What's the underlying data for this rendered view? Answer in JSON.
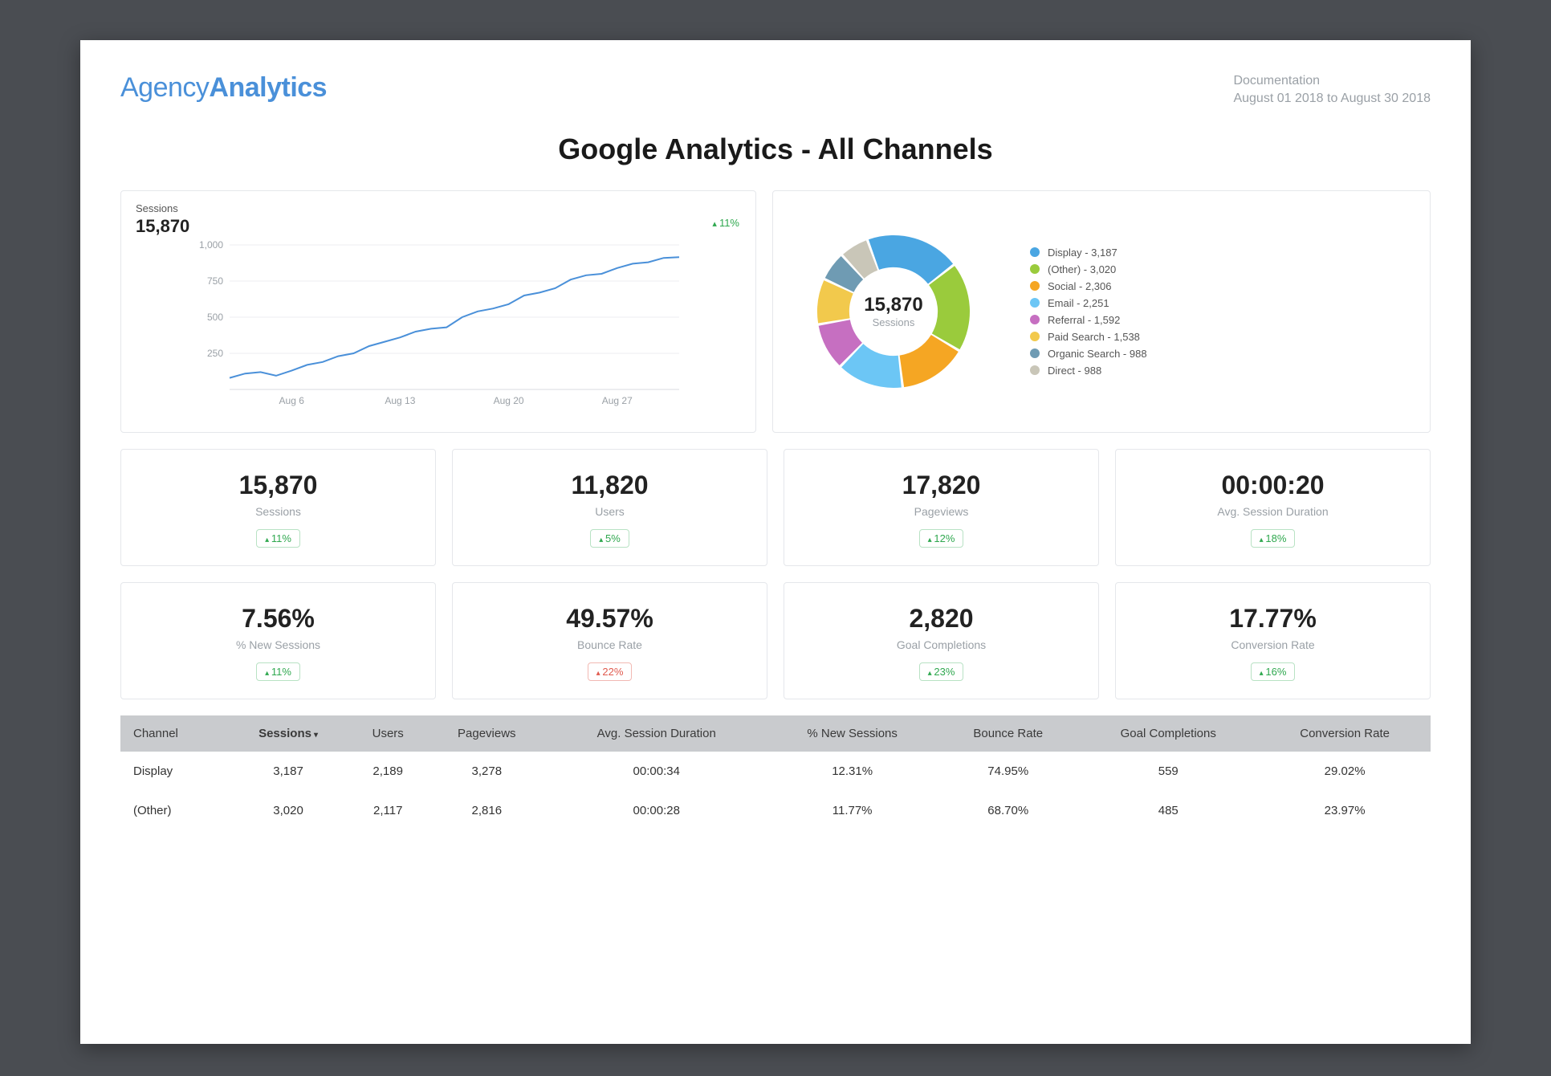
{
  "logo": {
    "part1": "Agency",
    "part2": "Analytics"
  },
  "meta": {
    "line1": "Documentation",
    "line2": "August 01 2018 to August 30 2018"
  },
  "page_title": "Google Analytics - All Channels",
  "sessions_chart": {
    "type": "line",
    "label": "Sessions",
    "value": "15,870",
    "delta": "11%",
    "delta_direction": "up",
    "line_color": "#4a90d9",
    "grid_color": "#eceef0",
    "axis_color": "#d8dbe0",
    "tick_text_color": "#9aa0a6",
    "background_color": "#ffffff",
    "ylim": [
      0,
      1000
    ],
    "yticks": [
      250,
      500,
      750,
      1000
    ],
    "xticks": [
      "Aug 6",
      "Aug 13",
      "Aug 20",
      "Aug 27"
    ],
    "points": [
      80,
      110,
      120,
      95,
      130,
      170,
      190,
      230,
      250,
      300,
      330,
      360,
      400,
      420,
      430,
      500,
      540,
      560,
      590,
      650,
      670,
      700,
      760,
      790,
      800,
      840,
      870,
      880,
      910,
      915
    ]
  },
  "donut_chart": {
    "type": "donut",
    "center_value": "15,870",
    "center_label": "Sessions",
    "background_color": "#ffffff",
    "inner_radius_pct": 58,
    "slice_gap_deg": 2,
    "legend_fontsize": 13,
    "slices": [
      {
        "label": "Display",
        "value": 3187,
        "color": "#4aa6e2",
        "legend": "Display - 3,187"
      },
      {
        "label": "(Other)",
        "value": 3020,
        "color": "#9acb3c",
        "legend": "(Other) - 3,020"
      },
      {
        "label": "Social",
        "value": 2306,
        "color": "#f5a623",
        "legend": "Social - 2,306"
      },
      {
        "label": "Email",
        "value": 2251,
        "color": "#6cc6f5",
        "legend": "Email - 2,251"
      },
      {
        "label": "Referral",
        "value": 1592,
        "color": "#c66fc1",
        "legend": "Referral - 1,592"
      },
      {
        "label": "Paid Search",
        "value": 1538,
        "color": "#f2c94c",
        "legend": "Paid Search - 1,538"
      },
      {
        "label": "Organic Search",
        "value": 988,
        "color": "#6f9bb3",
        "legend": "Organic Search - 988"
      },
      {
        "label": "Direct",
        "value": 988,
        "color": "#c9c6b8",
        "legend": "Direct - 988"
      }
    ]
  },
  "metrics": [
    {
      "value": "15,870",
      "label": "Sessions",
      "delta": "11%",
      "dir": "up"
    },
    {
      "value": "11,820",
      "label": "Users",
      "delta": "5%",
      "dir": "up"
    },
    {
      "value": "17,820",
      "label": "Pageviews",
      "delta": "12%",
      "dir": "up"
    },
    {
      "value": "00:00:20",
      "label": "Avg. Session Duration",
      "delta": "18%",
      "dir": "up"
    },
    {
      "value": "7.56%",
      "label": "% New Sessions",
      "delta": "11%",
      "dir": "up"
    },
    {
      "value": "49.57%",
      "label": "Bounce Rate",
      "delta": "22%",
      "dir": "down"
    },
    {
      "value": "2,820",
      "label": "Goal Completions",
      "delta": "23%",
      "dir": "up"
    },
    {
      "value": "17.77%",
      "label": "Conversion Rate",
      "delta": "16%",
      "dir": "up"
    }
  ],
  "table": {
    "header_bg": "#c9cbce",
    "header_text_color": "#3a3a3a",
    "sorted_column_index": 1,
    "sort_direction": "desc",
    "columns": [
      "Channel",
      "Sessions",
      "Users",
      "Pageviews",
      "Avg. Session Duration",
      "% New Sessions",
      "Bounce Rate",
      "Goal Completions",
      "Conversion Rate"
    ],
    "rows": [
      [
        "Display",
        "3,187",
        "2,189",
        "3,278",
        "00:00:34",
        "12.31%",
        "74.95%",
        "559",
        "29.02%"
      ],
      [
        "(Other)",
        "3,020",
        "2,117",
        "2,816",
        "00:00:28",
        "11.77%",
        "68.70%",
        "485",
        "23.97%"
      ]
    ]
  }
}
